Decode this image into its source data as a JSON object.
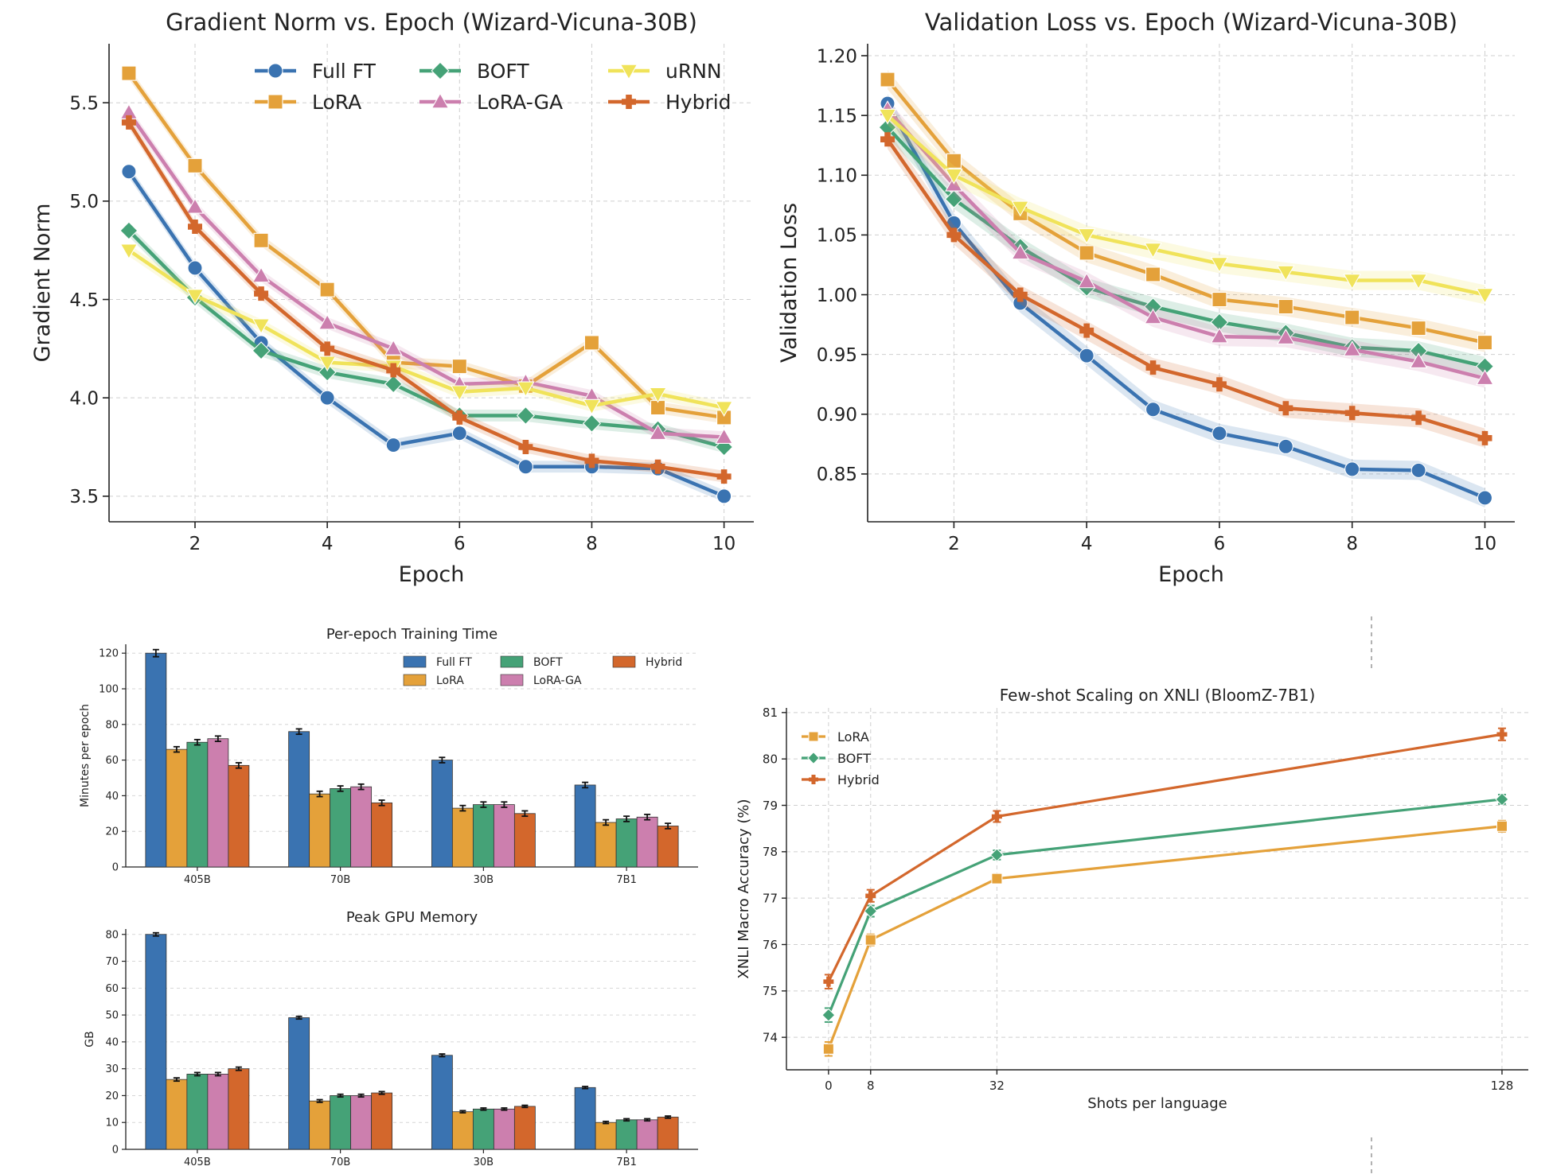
{
  "series_styles": {
    "Full FT": {
      "color": "#3a73b1",
      "marker": "circle"
    },
    "LoRA": {
      "color": "#e4a13a",
      "marker": "square"
    },
    "BOFT": {
      "color": "#45a277",
      "marker": "diamond"
    },
    "LoRA-GA": {
      "color": "#cc7fae",
      "marker": "triangle-up"
    },
    "uRNN": {
      "color": "#f0e35a",
      "marker": "triangle-down"
    },
    "Hybrid": {
      "color": "#d3672c",
      "marker": "plus"
    }
  },
  "chart_data": [
    {
      "id": "grad",
      "type": "line",
      "title": "Gradient Norm vs. Epoch (Wizard-Vicuna-30B)",
      "xlabel": "Epoch",
      "ylabel": "Gradient Norm",
      "xlim": [
        0.7,
        10.45
      ],
      "ylim": [
        3.37,
        5.8
      ],
      "xticks": [
        2,
        4,
        6,
        8,
        10
      ],
      "yticks": [
        3.5,
        4.0,
        4.5,
        5.0,
        5.5
      ],
      "ytick_labels": [
        "3.5",
        "4.0",
        "4.5",
        "5.0",
        "5.5"
      ],
      "legend": [
        "Full FT",
        "LoRA",
        "BOFT",
        "LoRA-GA",
        "uRNN",
        "Hybrid"
      ],
      "legend_loc": "upper right",
      "x": [
        1,
        2,
        3,
        4,
        5,
        6,
        7,
        8,
        9,
        10
      ],
      "band": 0.03,
      "series": [
        {
          "name": "Full FT",
          "values": [
            5.15,
            4.66,
            4.28,
            4.0,
            3.76,
            3.82,
            3.65,
            3.65,
            3.64,
            3.5
          ]
        },
        {
          "name": "LoRA",
          "values": [
            5.65,
            5.18,
            4.8,
            4.55,
            4.18,
            4.16,
            4.06,
            4.28,
            3.95,
            3.9
          ]
        },
        {
          "name": "BOFT",
          "values": [
            4.85,
            4.51,
            4.24,
            4.13,
            4.07,
            3.91,
            3.91,
            3.87,
            3.84,
            3.75
          ]
        },
        {
          "name": "LoRA-GA",
          "values": [
            5.45,
            4.97,
            4.62,
            4.38,
            4.25,
            4.07,
            4.08,
            4.01,
            3.82,
            3.8
          ]
        },
        {
          "name": "uRNN",
          "values": [
            4.75,
            4.52,
            4.37,
            4.18,
            4.16,
            4.03,
            4.05,
            3.96,
            4.02,
            3.95
          ]
        },
        {
          "name": "Hybrid",
          "values": [
            5.4,
            4.87,
            4.53,
            4.25,
            4.14,
            3.9,
            3.75,
            3.68,
            3.65,
            3.6
          ]
        }
      ]
    },
    {
      "id": "val",
      "type": "line",
      "title": "Validation Loss vs. Epoch (Wizard-Vicuna-30B)",
      "xlabel": "Epoch",
      "ylabel": "Validation Loss",
      "xlim": [
        0.7,
        10.45
      ],
      "ylim": [
        0.81,
        1.21
      ],
      "xticks": [
        2,
        4,
        6,
        8,
        10
      ],
      "yticks": [
        0.85,
        0.9,
        0.95,
        1.0,
        1.05,
        1.1,
        1.15,
        1.2
      ],
      "ytick_labels": [
        "0.85",
        "0.90",
        "0.95",
        "1.00",
        "1.05",
        "1.10",
        "1.15",
        "1.20"
      ],
      "x": [
        1,
        2,
        3,
        4,
        5,
        6,
        7,
        8,
        9,
        10
      ],
      "band": 0.008,
      "series": [
        {
          "name": "Full FT",
          "values": [
            1.16,
            1.06,
            0.993,
            0.949,
            0.904,
            0.884,
            0.873,
            0.854,
            0.853,
            0.83
          ]
        },
        {
          "name": "LoRA",
          "values": [
            1.18,
            1.112,
            1.068,
            1.035,
            1.017,
            0.996,
            0.99,
            0.981,
            0.972,
            0.96
          ]
        },
        {
          "name": "BOFT",
          "values": [
            1.14,
            1.08,
            1.04,
            1.006,
            0.99,
            0.977,
            0.968,
            0.956,
            0.953,
            0.94
          ]
        },
        {
          "name": "LoRA-GA",
          "values": [
            1.155,
            1.092,
            1.035,
            1.011,
            0.981,
            0.965,
            0.964,
            0.954,
            0.944,
            0.93
          ]
        },
        {
          "name": "uRNN",
          "values": [
            1.15,
            1.1,
            1.073,
            1.05,
            1.038,
            1.026,
            1.019,
            1.012,
            1.012,
            1.0
          ]
        },
        {
          "name": "Hybrid",
          "values": [
            1.13,
            1.05,
            1.0,
            0.97,
            0.939,
            0.925,
            0.905,
            0.901,
            0.897,
            0.88
          ]
        }
      ]
    },
    {
      "id": "time",
      "type": "bar",
      "title": "Per-epoch Training Time",
      "xlabel": "",
      "ylabel": "Minutes per epoch",
      "ylim": [
        0,
        125
      ],
      "yticks": [
        0,
        20,
        40,
        60,
        80,
        100,
        120
      ],
      "categories": [
        "405B",
        "70B",
        "30B",
        "7B1"
      ],
      "legend": [
        "Full FT",
        "LoRA",
        "BOFT",
        "LoRA-GA",
        "Hybrid"
      ],
      "legend_loc": "upper right",
      "series": [
        {
          "name": "Full FT",
          "values": [
            120,
            76,
            60,
            46
          ],
          "errors": [
            2,
            1.5,
            1.5,
            1.5
          ]
        },
        {
          "name": "LoRA",
          "values": [
            66,
            41,
            33,
            25
          ],
          "errors": [
            1.5,
            1.5,
            1.5,
            1.5
          ]
        },
        {
          "name": "BOFT",
          "values": [
            70,
            44,
            35,
            27
          ],
          "errors": [
            1.5,
            1.5,
            1.5,
            1.5
          ]
        },
        {
          "name": "LoRA-GA",
          "values": [
            72,
            45,
            35,
            28
          ],
          "errors": [
            1.5,
            1.5,
            1.5,
            1.5
          ]
        },
        {
          "name": "Hybrid",
          "values": [
            57,
            36,
            30,
            23
          ],
          "errors": [
            1.5,
            1.5,
            1.5,
            1.5
          ]
        }
      ]
    },
    {
      "id": "mem",
      "type": "bar",
      "title": "Peak GPU Memory",
      "xlabel": "",
      "ylabel": "GB",
      "ylim": [
        0,
        82
      ],
      "yticks": [
        0,
        10,
        20,
        30,
        40,
        50,
        60,
        70,
        80
      ],
      "categories": [
        "405B",
        "70B",
        "30B",
        "7B1"
      ],
      "series": [
        {
          "name": "Full FT",
          "values": [
            80,
            49,
            35,
            23
          ],
          "errors": [
            0.6,
            0.5,
            0.5,
            0.4
          ]
        },
        {
          "name": "LoRA",
          "values": [
            26,
            18,
            14,
            10
          ],
          "errors": [
            0.6,
            0.5,
            0.4,
            0.4
          ]
        },
        {
          "name": "BOFT",
          "values": [
            28,
            20,
            15,
            11
          ],
          "errors": [
            0.6,
            0.5,
            0.4,
            0.4
          ]
        },
        {
          "name": "LoRA-GA",
          "values": [
            28,
            20,
            15,
            11
          ],
          "errors": [
            0.6,
            0.5,
            0.4,
            0.4
          ]
        },
        {
          "name": "Hybrid",
          "values": [
            30,
            21,
            16,
            12
          ],
          "errors": [
            0.6,
            0.5,
            0.4,
            0.4
          ]
        }
      ]
    },
    {
      "id": "xnli",
      "type": "line",
      "title": "Few-shot Scaling on XNLI (BloomZ-7B1)",
      "xlabel": "Shots per language",
      "ylabel": "XNLI Macro Accuracy (%)",
      "xlim": [
        -8,
        133
      ],
      "ylim": [
        73.3,
        81.1
      ],
      "xticks": [
        0,
        8,
        32,
        128
      ],
      "yticks": [
        74,
        75,
        76,
        77,
        78,
        79,
        80,
        81
      ],
      "legend": [
        "LoRA",
        "BOFT",
        "Hybrid"
      ],
      "legend_loc": "upper left",
      "x": [
        0,
        8,
        32,
        128
      ],
      "series": [
        {
          "name": "LoRA",
          "values": [
            73.75,
            76.1,
            77.42,
            78.55
          ],
          "errors": [
            0.15,
            0.12,
            0.1,
            0.12
          ]
        },
        {
          "name": "BOFT",
          "values": [
            74.48,
            76.72,
            77.93,
            79.13
          ],
          "errors": [
            0.15,
            0.12,
            0.1,
            0.1
          ]
        },
        {
          "name": "Hybrid",
          "values": [
            75.2,
            77.05,
            78.76,
            80.53
          ],
          "errors": [
            0.15,
            0.13,
            0.12,
            0.13
          ]
        }
      ]
    }
  ]
}
